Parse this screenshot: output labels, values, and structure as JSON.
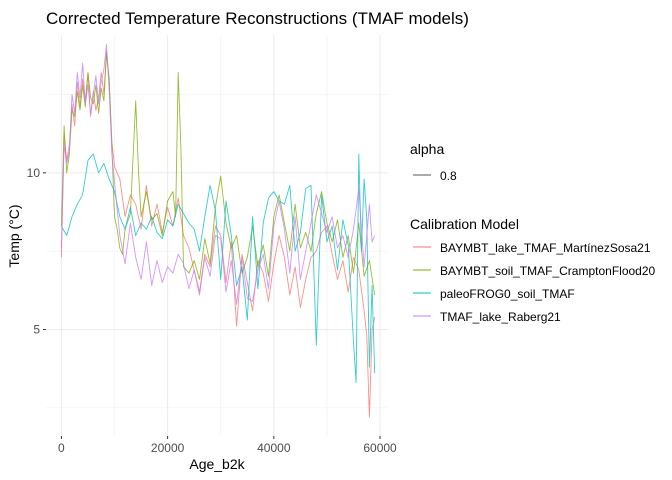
{
  "chart_data": {
    "type": "line",
    "title": "Corrected Temperature Reconstructions (TMAF models)",
    "xlabel": "Age_b2k",
    "ylabel": "Temp (°C)",
    "xlim": [
      -2900,
      61500
    ],
    "ylim": [
      1.6,
      14.4
    ],
    "x_ticks": [
      0,
      20000,
      40000,
      60000
    ],
    "x_tick_labels": [
      "0",
      "20000",
      "40000",
      "60000"
    ],
    "y_ticks": [
      5,
      10
    ],
    "y_tick_labels": [
      "5",
      "10"
    ],
    "grid": true,
    "legend_position": "right",
    "legend_alpha": {
      "title": "alpha",
      "value": "0.8"
    },
    "legend_title": "Calibration Model",
    "series": [
      {
        "name": "BAYMBT_lake_TMAF_MartínezSosa21",
        "color": "#F8766D",
        "x": [
          0,
          500,
          1000,
          1500,
          2000,
          2500,
          3000,
          3500,
          4000,
          4500,
          5000,
          5500,
          6000,
          6500,
          7000,
          7500,
          8000,
          8500,
          9000,
          9500,
          10000,
          11000,
          12000,
          13000,
          14000,
          15000,
          16000,
          17000,
          18000,
          19000,
          20000,
          21000,
          22000,
          23000,
          24000,
          25000,
          26000,
          27000,
          28000,
          29000,
          30000,
          31000,
          32000,
          33000,
          34000,
          35000,
          36000,
          37000,
          38000,
          39000,
          40000,
          41000,
          42000,
          43000,
          44000,
          45000,
          46000,
          47000,
          48000,
          49000,
          50000,
          51000,
          52000,
          53000,
          54000,
          55000,
          56000,
          57000,
          57500,
          58000,
          58500,
          59000
        ],
        "y": [
          7.3,
          11.2,
          10.4,
          10.9,
          12.2,
          11.5,
          12.9,
          12.1,
          13.0,
          12.3,
          13.2,
          11.8,
          12.6,
          12.0,
          12.4,
          13.2,
          12.5,
          13.8,
          12.9,
          11.0,
          10.2,
          9.8,
          8.6,
          9.3,
          9.0,
          8.2,
          9.6,
          8.3,
          9.0,
          8.1,
          8.9,
          8.3,
          9.2,
          8.0,
          7.6,
          6.9,
          6.2,
          7.4,
          7.0,
          8.3,
          8.0,
          6.5,
          7.8,
          5.1,
          7.4,
          6.5,
          5.6,
          7.2,
          6.8,
          5.9,
          7.1,
          8.0,
          7.3,
          6.1,
          7.0,
          5.7,
          6.6,
          7.3,
          7.5,
          8.1,
          8.3,
          7.4,
          6.6,
          7.2,
          6.2,
          7.3,
          6.9,
          5.6,
          4.8,
          2.2,
          5.0,
          5.4
        ]
      },
      {
        "name": "BAYMBT_soil_TMAF_CramptonFlood20",
        "color": "#7CAE00",
        "x": [
          0,
          500,
          1000,
          1500,
          2000,
          2500,
          3000,
          3500,
          4000,
          4500,
          5000,
          5500,
          6000,
          6500,
          7000,
          7500,
          8000,
          8500,
          9000,
          9500,
          10000,
          10500,
          11000,
          11500,
          12000,
          13000,
          14000,
          14500,
          15000,
          16000,
          17000,
          18000,
          19000,
          20000,
          21000,
          21500,
          22000,
          22500,
          23000,
          24000,
          25000,
          26000,
          27000,
          28000,
          29000,
          30000,
          31000,
          32000,
          33000,
          34000,
          35000,
          36000,
          37000,
          38000,
          39000,
          40000,
          41000,
          42000,
          43000,
          44000,
          45000,
          46000,
          47000,
          48000,
          49000,
          50000,
          51000,
          52000,
          53000,
          54000,
          55000,
          56000,
          57000,
          58000,
          59000
        ],
        "y": [
          8.3,
          11.5,
          10.0,
          10.6,
          12.0,
          11.8,
          12.6,
          12.0,
          12.8,
          12.1,
          13.2,
          12.4,
          12.2,
          12.8,
          11.9,
          12.7,
          12.3,
          13.9,
          13.0,
          10.8,
          8.6,
          8.2,
          7.6,
          7.4,
          8.2,
          8.7,
          12.3,
          10.1,
          8.6,
          9.4,
          8.5,
          8.7,
          8.0,
          9.1,
          9.4,
          8.6,
          13.2,
          10.8,
          7.0,
          6.8,
          7.2,
          6.6,
          7.9,
          7.1,
          8.9,
          9.9,
          8.4,
          7.6,
          8.0,
          6.8,
          7.3,
          8.3,
          7.0,
          7.7,
          6.7,
          8.6,
          9.3,
          8.4,
          7.5,
          9.0,
          7.6,
          8.1,
          7.5,
          8.7,
          9.4,
          8.4,
          7.8,
          8.5,
          7.3,
          8.0,
          6.8,
          8.4,
          6.7,
          7.2,
          6.1
        ]
      },
      {
        "name": "paleoFROG0_soil_TMAF",
        "color": "#00BFC4",
        "x": [
          0,
          1000,
          2000,
          3000,
          4000,
          5000,
          6000,
          7000,
          8000,
          9000,
          10000,
          11000,
          12000,
          13000,
          14000,
          15000,
          16000,
          17000,
          18000,
          19000,
          20000,
          21000,
          22000,
          23000,
          24000,
          25000,
          26000,
          27000,
          28000,
          29000,
          30000,
          31000,
          32000,
          33000,
          34000,
          35000,
          36000,
          37000,
          38000,
          39000,
          40000,
          41000,
          42000,
          43000,
          44000,
          45000,
          46000,
          47000,
          48000,
          49000,
          50000,
          51000,
          52000,
          53000,
          54000,
          55000,
          55500,
          56000,
          56500,
          57000,
          57500,
          58000,
          58500,
          59000
        ],
        "y": [
          8.3,
          8.0,
          8.6,
          9.0,
          9.3,
          10.4,
          10.6,
          10.0,
          10.3,
          9.8,
          9.4,
          8.6,
          8.2,
          8.9,
          8.0,
          8.4,
          8.2,
          8.6,
          8.1,
          7.9,
          8.5,
          8.3,
          9.0,
          8.7,
          8.4,
          8.2,
          7.5,
          8.6,
          9.6,
          8.8,
          6.6,
          9.1,
          8.0,
          6.4,
          7.0,
          5.3,
          8.6,
          6.3,
          8.4,
          9.2,
          9.4,
          9.1,
          9.0,
          9.6,
          7.5,
          8.1,
          9.5,
          9.6,
          4.5,
          9.3,
          7.8,
          8.3,
          6.9,
          8.5,
          7.7,
          4.6,
          3.3,
          10.6,
          7.5,
          9.8,
          8.5,
          3.8,
          6.4,
          3.6
        ]
      },
      {
        "name": "TMAF_lake_Raberg21",
        "color": "#C77CFF",
        "x": [
          0,
          500,
          1000,
          1500,
          2000,
          2500,
          3000,
          3500,
          4000,
          4500,
          5000,
          5500,
          6000,
          6500,
          7000,
          7500,
          8000,
          8500,
          9000,
          9500,
          10000,
          11000,
          12000,
          13000,
          14000,
          15000,
          16000,
          17000,
          18000,
          19000,
          20000,
          21000,
          22000,
          23000,
          24000,
          25000,
          26000,
          27000,
          28000,
          29000,
          30000,
          31000,
          32000,
          33000,
          34000,
          35000,
          36000,
          37000,
          38000,
          39000,
          40000,
          41000,
          42000,
          43000,
          44000,
          45000,
          46000,
          47000,
          48000,
          49000,
          50000,
          51000,
          52000,
          53000,
          54000,
          55000,
          56000,
          57000,
          58000,
          58500,
          59000
        ],
        "y": [
          7.6,
          10.9,
          10.3,
          10.7,
          12.5,
          11.9,
          13.2,
          12.4,
          13.5,
          12.2,
          12.8,
          11.9,
          12.5,
          13.1,
          12.2,
          12.9,
          13.3,
          14.1,
          12.6,
          10.6,
          9.7,
          8.0,
          7.1,
          8.4,
          7.3,
          6.6,
          7.8,
          6.4,
          7.2,
          6.5,
          7.0,
          6.8,
          7.4,
          7.1,
          6.3,
          6.9,
          6.1,
          7.3,
          6.7,
          8.0,
          7.9,
          6.2,
          7.2,
          5.8,
          7.3,
          6.0,
          5.9,
          6.9,
          7.4,
          6.3,
          8.3,
          9.1,
          8.2,
          6.8,
          8.6,
          6.6,
          7.5,
          8.4,
          9.3,
          8.7,
          8.1,
          8.6,
          7.6,
          8.0,
          7.3,
          8.2,
          9.5,
          7.0,
          9.0,
          7.8,
          8.0
        ]
      }
    ]
  }
}
